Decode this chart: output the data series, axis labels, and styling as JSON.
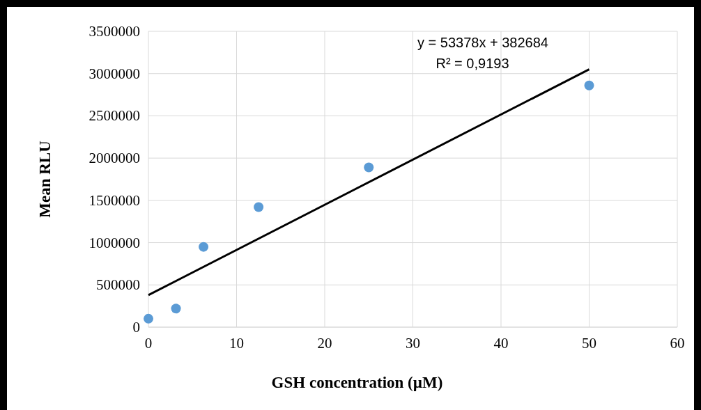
{
  "chart_data": {
    "type": "scatter",
    "xlabel": "GSH concentration (µM)",
    "ylabel": "Mean RLU",
    "x": [
      0,
      3.125,
      6.25,
      12.5,
      25,
      50
    ],
    "series": [
      {
        "color": "#5b9bd5",
        "values": [
          100000,
          220000,
          950000,
          1420000,
          1890000,
          2860000
        ]
      },
      {
        "type": "line",
        "color": "#000000",
        "x": [
          0,
          50
        ],
        "values": [
          380000,
          3050000
        ],
        "marker": "none"
      }
    ],
    "xlim": [
      0,
      60
    ],
    "xticks": [
      0,
      10,
      20,
      30,
      40,
      50,
      60
    ],
    "ylim": [
      0,
      3500000
    ],
    "yticks": [
      0,
      500000,
      1000000,
      1500000,
      2000000,
      2500000,
      3000000,
      3500000
    ],
    "grid": true,
    "marker": "circle",
    "line_style": "solid",
    "annotations": [
      "y = 53378x + 382684",
      "R² = 0,9193"
    ]
  }
}
